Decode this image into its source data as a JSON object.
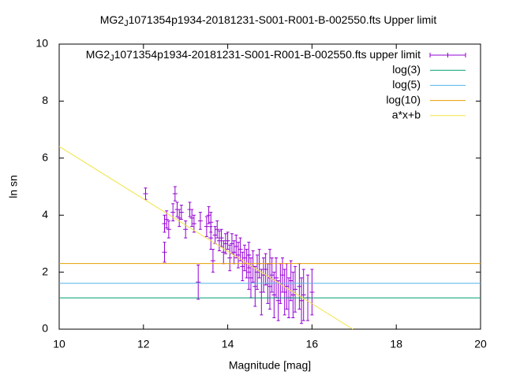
{
  "chart_data": {
    "type": "errorbar",
    "title": "MG2_J1071354p1934-20181231-S001-R001-B-002550.fts Upper limit",
    "xlabel": "Magnitude [mag]",
    "ylabel": "ln sn",
    "xlim": [
      10,
      20
    ],
    "ylim": [
      0,
      10
    ],
    "xticks": [
      10,
      12,
      14,
      16,
      18,
      20
    ],
    "yticks": [
      0,
      2,
      4,
      6,
      8,
      10
    ],
    "grid": false,
    "legend": "top-right",
    "series": [
      {
        "name": "MG2_J1071354p1934-20181231-S001-R001-B-002550.fts upper limit",
        "color": "#9400d3",
        "type": "errorbar",
        "x": [
          12.05,
          12.5,
          12.5,
          12.55,
          12.6,
          12.7,
          12.75,
          12.8,
          12.85,
          12.9,
          13.0,
          13.1,
          13.15,
          13.2,
          13.3,
          13.35,
          13.5,
          13.55,
          13.6,
          13.6,
          13.65,
          13.7,
          13.75,
          13.8,
          13.85,
          13.9,
          13.95,
          14.0,
          14.05,
          14.1,
          14.15,
          14.2,
          14.25,
          14.3,
          14.35,
          14.4,
          14.45,
          14.5,
          14.5,
          14.55,
          14.6,
          14.65,
          14.7,
          14.75,
          14.8,
          14.85,
          14.9,
          14.95,
          15.0,
          15.0,
          15.05,
          15.1,
          15.15,
          15.2,
          15.25,
          15.3,
          15.35,
          15.4,
          15.45,
          15.5,
          15.55,
          15.6,
          15.7,
          15.75,
          15.8,
          15.9,
          16.0
        ],
        "values": [
          4.75,
          2.7,
          3.7,
          3.85,
          3.5,
          4.1,
          4.75,
          4.2,
          3.9,
          4.1,
          3.5,
          4.2,
          3.9,
          3.7,
          1.65,
          3.8,
          3.6,
          4.0,
          3.2,
          3.75,
          2.4,
          3.3,
          3.5,
          3.1,
          3.2,
          2.7,
          3.0,
          3.1,
          2.5,
          3.0,
          2.7,
          2.9,
          2.6,
          2.8,
          2.2,
          2.5,
          2.3,
          2.0,
          2.6,
          1.8,
          2.2,
          1.5,
          2.0,
          2.3,
          1.3,
          1.9,
          2.1,
          1.6,
          2.3,
          1.5,
          1.9,
          1.2,
          1.8,
          1.0,
          1.6,
          1.9,
          1.3,
          1.5,
          1.1,
          1.7,
          1.2,
          1.4,
          1.5,
          1.0,
          1.2,
          1.1,
          1.3
        ],
        "errors": [
          0.2,
          0.35,
          0.3,
          0.3,
          0.3,
          0.3,
          0.25,
          0.25,
          0.3,
          0.25,
          0.3,
          0.25,
          0.3,
          0.3,
          0.6,
          0.3,
          0.35,
          0.3,
          0.4,
          0.35,
          0.4,
          0.3,
          0.3,
          0.35,
          0.3,
          0.4,
          0.35,
          0.3,
          0.45,
          0.35,
          0.4,
          0.4,
          0.45,
          0.4,
          0.5,
          0.45,
          0.5,
          0.6,
          0.45,
          0.7,
          0.55,
          0.7,
          0.6,
          0.5,
          0.8,
          0.6,
          0.55,
          0.7,
          0.5,
          0.8,
          0.6,
          0.8,
          0.7,
          0.7,
          0.7,
          0.6,
          0.8,
          0.8,
          0.7,
          0.7,
          0.8,
          0.8,
          0.8,
          0.8,
          0.9,
          0.8,
          0.8
        ]
      },
      {
        "name": "log(3)",
        "color": "#009e73",
        "type": "line",
        "x": [
          10,
          20
        ],
        "values": [
          1.0986,
          1.0986
        ]
      },
      {
        "name": "log(5)",
        "color": "#56b4e9",
        "type": "line",
        "x": [
          10,
          20
        ],
        "values": [
          1.6094,
          1.6094
        ]
      },
      {
        "name": "log(10)",
        "color": "#e69f00",
        "type": "line",
        "x": [
          10,
          20
        ],
        "values": [
          2.3026,
          2.3026
        ]
      },
      {
        "name": "a*x+b",
        "color": "#f0e442",
        "type": "line",
        "x": [
          10,
          16.97
        ],
        "values": [
          6.41,
          0
        ]
      }
    ]
  }
}
